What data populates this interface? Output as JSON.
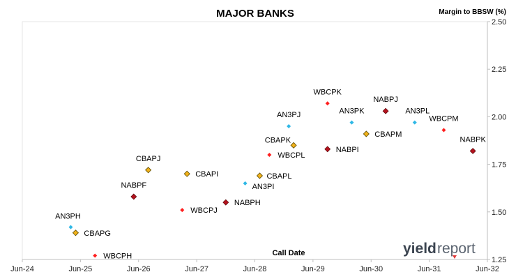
{
  "chart_data": {
    "type": "scatter",
    "title": "MAJOR BANKS",
    "ylabel": "Margin to BBSW (%)",
    "xlabel": "Call Date",
    "x_ticks": [
      "Jun-24",
      "Jun-25",
      "Jun-26",
      "Jun-27",
      "Jun-28",
      "Jun-29",
      "Jun-30",
      "Jun-31",
      "Jun-32"
    ],
    "y_ticks": [
      "1.25",
      "1.50",
      "1.75",
      "2.00",
      "2.25",
      "2.50"
    ],
    "xlim": [
      "2024-06",
      "2032-06"
    ],
    "ylim": [
      1.25,
      2.5
    ],
    "y_axis_position": "right",
    "grid": false,
    "legend": "none",
    "colors": {
      "ANZ": "#2fb8e6",
      "CBA": "#f2b21b",
      "NAB": "#b3121e",
      "WBC": "#ff1f1f"
    },
    "points": [
      {
        "label": "AN3PH",
        "x": "2025-04",
        "y": 1.42,
        "group": "ANZ"
      },
      {
        "label": "CBAPG",
        "x": "2025-05",
        "y": 1.39,
        "group": "CBA"
      },
      {
        "label": "WBCPH",
        "x": "2025-09",
        "y": 1.27,
        "group": "WBC"
      },
      {
        "label": "NABPF",
        "x": "2026-05",
        "y": 1.58,
        "group": "NAB"
      },
      {
        "label": "CBAPJ",
        "x": "2026-08",
        "y": 1.72,
        "group": "CBA"
      },
      {
        "label": "WBCPJ",
        "x": "2027-03",
        "y": 1.51,
        "group": "WBC"
      },
      {
        "label": "CBAPI",
        "x": "2027-04",
        "y": 1.7,
        "group": "CBA"
      },
      {
        "label": "NABPH",
        "x": "2027-12",
        "y": 1.55,
        "group": "NAB"
      },
      {
        "label": "AN3PI",
        "x": "2028-04",
        "y": 1.65,
        "group": "ANZ"
      },
      {
        "label": "CBAPL",
        "x": "2028-07",
        "y": 1.69,
        "group": "CBA"
      },
      {
        "label": "WBCPL",
        "x": "2028-09",
        "y": 1.8,
        "group": "WBC"
      },
      {
        "label": "AN3PJ",
        "x": "2029-01",
        "y": 1.95,
        "group": "ANZ"
      },
      {
        "label": "CBAPK",
        "x": "2029-02",
        "y": 1.85,
        "group": "CBA"
      },
      {
        "label": "WBCPK",
        "x": "2029-09",
        "y": 2.07,
        "group": "WBC"
      },
      {
        "label": "NABPI",
        "x": "2029-09",
        "y": 1.83,
        "group": "NAB"
      },
      {
        "label": "AN3PK",
        "x": "2030-02",
        "y": 1.97,
        "group": "ANZ"
      },
      {
        "label": "CBAPM",
        "x": "2030-05",
        "y": 1.91,
        "group": "CBA"
      },
      {
        "label": "NABPJ",
        "x": "2030-09",
        "y": 2.03,
        "group": "NAB"
      },
      {
        "label": "AN3PL",
        "x": "2031-03",
        "y": 1.97,
        "group": "ANZ"
      },
      {
        "label": "WBCPM",
        "x": "2031-09",
        "y": 1.93,
        "group": "WBC"
      },
      {
        "label": "NABPK",
        "x": "2032-03",
        "y": 1.82,
        "group": "NAB"
      }
    ]
  },
  "branding": {
    "logo_text_bold": "yield",
    "logo_text_light": "report"
  }
}
